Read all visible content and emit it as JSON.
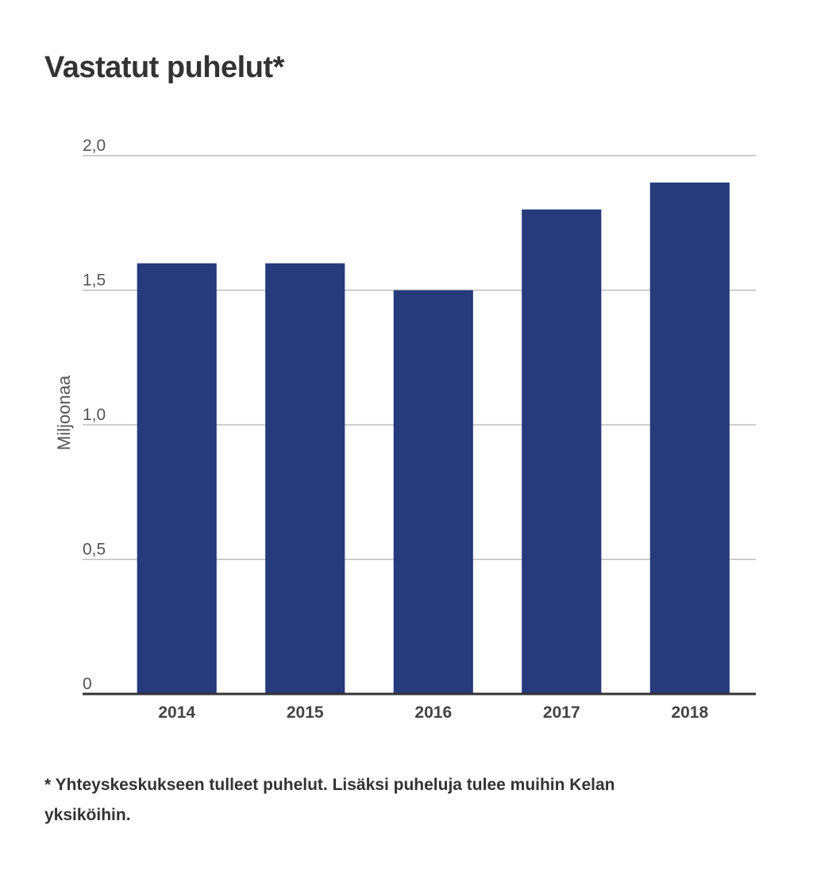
{
  "chart_data": {
    "type": "bar",
    "title": "Vastatut puhelut*",
    "ylabel": "Miljoonaa",
    "xlabel": "",
    "categories": [
      "2014",
      "2015",
      "2016",
      "2017",
      "2018"
    ],
    "values": [
      1.6,
      1.6,
      1.5,
      1.8,
      1.9
    ],
    "ylim": [
      0,
      2.0
    ],
    "yticks": [
      0,
      0.5,
      1.0,
      1.5,
      2.0
    ],
    "ytick_labels": [
      "0",
      "0,5",
      "1,0",
      "1,5",
      "2,0"
    ],
    "grid": true,
    "legend": "none",
    "bar_color": "#263a7c"
  },
  "footnote": "* Yhteyskeskukseen tulleet puhelut. Lisäksi puheluja tulee muihin Kelan yksiköihin."
}
